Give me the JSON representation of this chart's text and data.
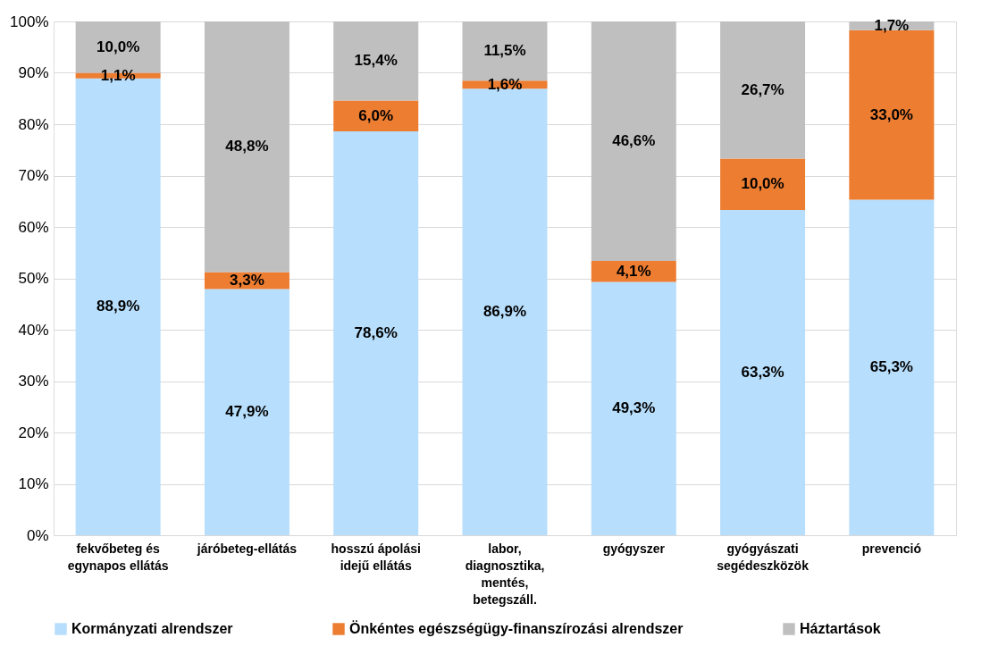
{
  "chart_data": {
    "type": "bar",
    "stacked": true,
    "categories": [
      "fekvőbeteg és egynapos ellátás",
      "járóbeteg-ellátás",
      "hosszú ápolási idejű ellátás",
      "labor, diagnosztika, mentés, betegszáll.",
      "gyógyszer",
      "gyógyászati segédeszközök",
      "prevenció"
    ],
    "series": [
      {
        "name": "Kormányzati alrendszer",
        "color": "#b7defc",
        "values": [
          88.9,
          47.9,
          78.6,
          86.9,
          49.3,
          63.3,
          65.3
        ],
        "value_labels": [
          "88,9%",
          "47,9%",
          "78,6%",
          "86,9%",
          "49,3%",
          "63,3%",
          "65,3%"
        ]
      },
      {
        "name": "Önkéntes egészségügy-finanszírozási alrendszer",
        "color": "#ed7d31",
        "values": [
          1.1,
          3.3,
          6.0,
          1.6,
          4.1,
          10.0,
          33.0
        ],
        "value_labels": [
          "1,1%",
          "3,3%",
          "6,0%",
          "1,6%",
          "4,1%",
          "10,0%",
          "33,0%"
        ]
      },
      {
        "name": "Háztartások",
        "color": "#bfbfbf",
        "values": [
          10.0,
          48.8,
          15.4,
          11.5,
          46.6,
          26.7,
          1.7
        ],
        "value_labels": [
          "10,0%",
          "48,8%",
          "15,4%",
          "11,5%",
          "46,6%",
          "26,7%",
          "1,7%"
        ]
      }
    ],
    "ylim": [
      0,
      100
    ],
    "yticks": [
      {
        "value": 0,
        "label": "0%"
      },
      {
        "value": 10,
        "label": "10%"
      },
      {
        "value": 20,
        "label": "20%"
      },
      {
        "value": 30,
        "label": "30%"
      },
      {
        "value": 40,
        "label": "40%"
      },
      {
        "value": 50,
        "label": "50%"
      },
      {
        "value": 60,
        "label": "60%"
      },
      {
        "value": 70,
        "label": "70%"
      },
      {
        "value": 80,
        "label": "80%"
      },
      {
        "value": 90,
        "label": "90%"
      },
      {
        "value": 100,
        "label": "100%"
      }
    ],
    "grid": "y",
    "legend": "bottom"
  }
}
